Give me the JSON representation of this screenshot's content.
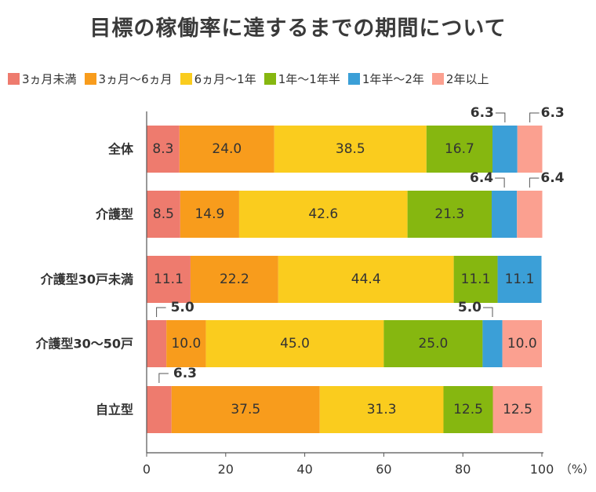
{
  "title": "目標の稼働率に達するまでの期間について",
  "chart_data": {
    "type": "bar",
    "orientation": "horizontal",
    "stacked": true,
    "categories": [
      "全体",
      "介護型",
      "介護型30戸未満",
      "介護型30〜50戸",
      "自立型"
    ],
    "series": [
      {
        "name": "3ヵ月未満",
        "color": "#ee7b6e",
        "values": [
          8.3,
          8.5,
          11.1,
          5.0,
          6.3
        ]
      },
      {
        "name": "3ヵ月〜6ヵ月",
        "color": "#f89c1c",
        "values": [
          24.0,
          14.9,
          22.2,
          10.0,
          37.5
        ]
      },
      {
        "name": "6ヵ月〜1年",
        "color": "#facc1e",
        "values": [
          38.5,
          42.6,
          44.4,
          45.0,
          31.3
        ]
      },
      {
        "name": "1年〜1年半",
        "color": "#86b710",
        "values": [
          16.7,
          21.3,
          11.1,
          25.0,
          12.5
        ]
      },
      {
        "name": "1年半〜2年",
        "color": "#3b9fd7",
        "values": [
          6.3,
          6.4,
          11.1,
          5.0,
          0
        ]
      },
      {
        "name": "2年以上",
        "color": "#fba090",
        "values": [
          6.3,
          6.4,
          0,
          10.0,
          12.5
        ]
      }
    ],
    "xlim": [
      0,
      100
    ],
    "xticks": [
      0,
      20,
      40,
      60,
      80,
      100
    ],
    "xunit": "（%）",
    "legend_position": "top"
  }
}
